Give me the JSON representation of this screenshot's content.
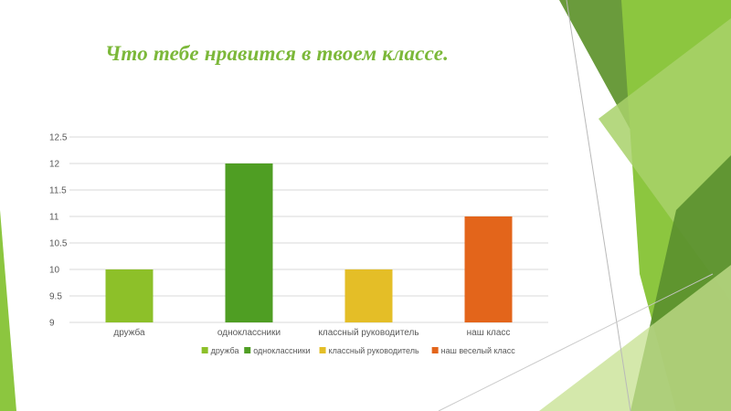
{
  "slide": {
    "title": "Что тебе нравится в твоем классе.",
    "decor_colors": [
      "#6a9b3c",
      "#8cc63f",
      "#a8d16a",
      "#5a8f2e",
      "#c5e08f"
    ]
  },
  "chart_data": {
    "type": "bar",
    "title": "",
    "xlabel": "",
    "ylabel": "",
    "categories": [
      "дружба",
      "одноклассники",
      "классный руководитель",
      "наш класс"
    ],
    "values": [
      10,
      12,
      10,
      11
    ],
    "colors": [
      "#8dc029",
      "#4f9e23",
      "#e4be27",
      "#e3651b"
    ],
    "ylim": [
      9,
      12.5
    ],
    "yticks": [
      9,
      9.5,
      10,
      10.5,
      11,
      11.5,
      12,
      12.5
    ],
    "ytick_labels": [
      "9",
      "9.5",
      "10",
      "10.5",
      "11",
      "11.5",
      "12",
      "12.5"
    ],
    "grid": true,
    "legend": {
      "position": "bottom",
      "entries": [
        {
          "label": "дружба",
          "color": "#8dc029"
        },
        {
          "label": "одноклассники",
          "color": "#4f9e23"
        },
        {
          "label": "классный руководитель",
          "color": "#e4be27"
        },
        {
          "label": "наш веселый класс",
          "color": "#e3651b"
        }
      ]
    }
  }
}
